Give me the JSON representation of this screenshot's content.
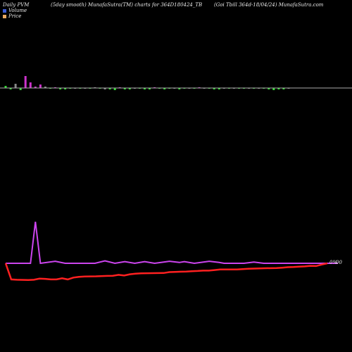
{
  "header": {
    "left": "Daily PVM",
    "middle": "(5day smooth) MunafaSutra(TM) charts for 364D180424_TB",
    "right": "(Goi  Tbill 364d-18/04/24) MunafaSutra.com"
  },
  "legend": {
    "volume_label": "Volume",
    "price_label": "Price",
    "volume_color": "#3b5bd6",
    "price_color": "#e8a860"
  },
  "colors": {
    "up": "#33dd33",
    "down": "#cc33cc",
    "neutral": "#888888",
    "axis": "#aaaaaa",
    "price_line": "#ff2020",
    "volume_line": "#cc44ee"
  },
  "chart_data": {
    "type": "bar",
    "title": "(5day smooth) MunafaSutra(TM) charts for 364D180424_TB",
    "n_sessions": 58,
    "bars": [
      {
        "value": 3,
        "color": "up"
      },
      {
        "value": -2,
        "color": "up"
      },
      {
        "value": 6,
        "color": "neutral"
      },
      {
        "value": -3,
        "color": "up"
      },
      {
        "value": 17,
        "color": "down"
      },
      {
        "value": 8,
        "color": "down"
      },
      {
        "value": 2,
        "color": "down"
      },
      {
        "value": 5,
        "color": "down"
      },
      {
        "value": 2,
        "color": "neutral"
      },
      {
        "value": -1,
        "color": "up"
      },
      {
        "value": 1,
        "color": "down"
      },
      {
        "value": -2,
        "color": "up"
      },
      {
        "value": -2,
        "color": "up"
      },
      {
        "value": -1,
        "color": "up"
      },
      {
        "value": -1,
        "color": "neutral"
      },
      {
        "value": -1,
        "color": "up"
      },
      {
        "value": -1,
        "color": "neutral"
      },
      {
        "value": -1,
        "color": "up"
      },
      {
        "value": 1,
        "color": "neutral"
      },
      {
        "value": -1,
        "color": "up"
      },
      {
        "value": -2,
        "color": "neutral"
      },
      {
        "value": -2,
        "color": "up"
      },
      {
        "value": -3,
        "color": "up"
      },
      {
        "value": 1,
        "color": "down"
      },
      {
        "value": -2,
        "color": "up"
      },
      {
        "value": -2,
        "color": "up"
      },
      {
        "value": -1,
        "color": "neutral"
      },
      {
        "value": -1,
        "color": "up"
      },
      {
        "value": -2,
        "color": "up"
      },
      {
        "value": -2,
        "color": "up"
      },
      {
        "value": 1,
        "color": "down"
      },
      {
        "value": -1,
        "color": "up"
      },
      {
        "value": -2,
        "color": "up"
      },
      {
        "value": -1,
        "color": "up"
      },
      {
        "value": -1,
        "color": "neutral"
      },
      {
        "value": -2,
        "color": "up"
      },
      {
        "value": -1,
        "color": "up"
      },
      {
        "value": -1,
        "color": "neutral"
      },
      {
        "value": -1,
        "color": "up"
      },
      {
        "value": 1,
        "color": "down"
      },
      {
        "value": -1,
        "color": "neutral"
      },
      {
        "value": -1,
        "color": "up"
      },
      {
        "value": -2,
        "color": "up"
      },
      {
        "value": -2,
        "color": "up"
      },
      {
        "value": -1,
        "color": "neutral"
      },
      {
        "value": -1,
        "color": "up"
      },
      {
        "value": -1,
        "color": "neutral"
      },
      {
        "value": -1,
        "color": "up"
      },
      {
        "value": -1,
        "color": "up"
      },
      {
        "value": -1,
        "color": "neutral"
      },
      {
        "value": -1,
        "color": "up"
      },
      {
        "value": -1,
        "color": "neutral"
      },
      {
        "value": -1,
        "color": "up"
      },
      {
        "value": -2,
        "color": "up"
      },
      {
        "value": -3,
        "color": "up"
      },
      {
        "value": -2,
        "color": "up"
      },
      {
        "value": -2,
        "color": "up"
      },
      {
        "value": -1,
        "color": "neutral"
      }
    ],
    "volume_line": {
      "y_range": [
        0,
        1
      ],
      "points": [
        {
          "x": 0,
          "y": 0
        },
        {
          "x": 5,
          "y": 0
        },
        {
          "x": 6,
          "y": 1
        },
        {
          "x": 7,
          "y": 0
        },
        {
          "x": 10,
          "y": 0.05
        },
        {
          "x": 12,
          "y": 0
        },
        {
          "x": 18,
          "y": 0
        },
        {
          "x": 20,
          "y": 0.06
        },
        {
          "x": 22,
          "y": 0
        },
        {
          "x": 24,
          "y": 0.04
        },
        {
          "x": 26,
          "y": 0
        },
        {
          "x": 28,
          "y": 0.04
        },
        {
          "x": 30,
          "y": 0
        },
        {
          "x": 33,
          "y": 0.05
        },
        {
          "x": 35,
          "y": 0.02
        },
        {
          "x": 36,
          "y": 0.04
        },
        {
          "x": 38,
          "y": 0
        },
        {
          "x": 41,
          "y": 0.05
        },
        {
          "x": 43,
          "y": 0.02
        },
        {
          "x": 44,
          "y": 0
        },
        {
          "x": 48,
          "y": 0
        },
        {
          "x": 50,
          "y": 0.03
        },
        {
          "x": 52,
          "y": 0
        },
        {
          "x": 57,
          "y": 0
        }
      ]
    },
    "price_line": {
      "y_range": [
        0,
        1
      ],
      "points": [
        {
          "x": 0,
          "y": 1
        },
        {
          "x": 1,
          "y": 0.12
        },
        {
          "x": 2,
          "y": 0.1
        },
        {
          "x": 4,
          "y": 0.09
        },
        {
          "x": 5,
          "y": 0.1
        },
        {
          "x": 6,
          "y": 0.16
        },
        {
          "x": 7,
          "y": 0.15
        },
        {
          "x": 8,
          "y": 0.12
        },
        {
          "x": 9,
          "y": 0.12
        },
        {
          "x": 10,
          "y": 0.18
        },
        {
          "x": 11,
          "y": 0.12
        },
        {
          "x": 12,
          "y": 0.22
        },
        {
          "x": 13,
          "y": 0.26
        },
        {
          "x": 14,
          "y": 0.28
        },
        {
          "x": 16,
          "y": 0.29
        },
        {
          "x": 18,
          "y": 0.31
        },
        {
          "x": 19,
          "y": 0.32
        },
        {
          "x": 20,
          "y": 0.37
        },
        {
          "x": 21,
          "y": 0.33
        },
        {
          "x": 22,
          "y": 0.4
        },
        {
          "x": 23,
          "y": 0.43
        },
        {
          "x": 24,
          "y": 0.45
        },
        {
          "x": 26,
          "y": 0.46
        },
        {
          "x": 28,
          "y": 0.47
        },
        {
          "x": 29,
          "y": 0.52
        },
        {
          "x": 30,
          "y": 0.53
        },
        {
          "x": 32,
          "y": 0.55
        },
        {
          "x": 33,
          "y": 0.57
        },
        {
          "x": 34,
          "y": 0.58
        },
        {
          "x": 35,
          "y": 0.6
        },
        {
          "x": 36,
          "y": 0.6
        },
        {
          "x": 37,
          "y": 0.63
        },
        {
          "x": 38,
          "y": 0.66
        },
        {
          "x": 40,
          "y": 0.66
        },
        {
          "x": 41,
          "y": 0.66
        },
        {
          "x": 42,
          "y": 0.68
        },
        {
          "x": 43,
          "y": 0.7
        },
        {
          "x": 44,
          "y": 0.71
        },
        {
          "x": 45,
          "y": 0.72
        },
        {
          "x": 46,
          "y": 0.73
        },
        {
          "x": 48,
          "y": 0.74
        },
        {
          "x": 49,
          "y": 0.76
        },
        {
          "x": 50,
          "y": 0.79
        },
        {
          "x": 51,
          "y": 0.8
        },
        {
          "x": 52,
          "y": 0.82
        },
        {
          "x": 53,
          "y": 0.83
        },
        {
          "x": 54,
          "y": 0.86
        },
        {
          "x": 55,
          "y": 0.85
        },
        {
          "x": 56,
          "y": 0.93
        },
        {
          "x": 57,
          "y": 1
        }
      ]
    },
    "last_level_label": "0%",
    "last_level_label_2": "00"
  }
}
